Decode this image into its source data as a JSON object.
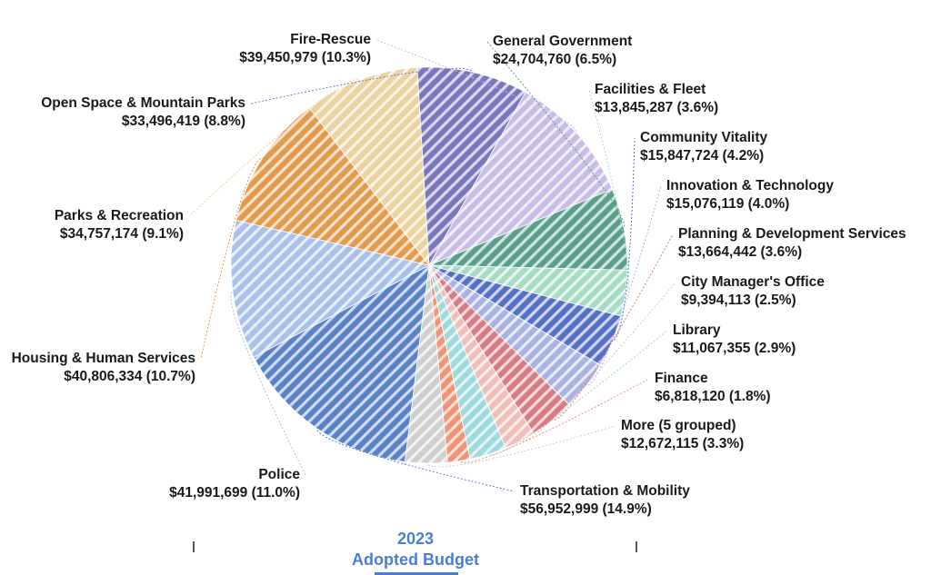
{
  "header": {
    "year": "2023",
    "subtitle": "Adopted Budget"
  },
  "chart_data": {
    "type": "pie",
    "title": "",
    "slices": [
      {
        "name": "Transportation & Mobility",
        "value": 56952999,
        "label": "$56,952,999 (14.9%)",
        "percent": 14.9,
        "color": "#5a82c8"
      },
      {
        "name": "Police",
        "value": 41991699,
        "label": "$41,991,699 (11.0%)",
        "percent": 11.0,
        "color": "#a9c1ea"
      },
      {
        "name": "Housing & Human Services",
        "value": 40806334,
        "label": "$40,806,334 (10.7%)",
        "percent": 10.7,
        "color": "#e39a4b"
      },
      {
        "name": "Parks & Recreation",
        "value": 34757174,
        "label": "$34,757,174 (9.1%)",
        "percent": 9.1,
        "color": "#ead3a0"
      },
      {
        "name": "Open Space & Mountain Parks",
        "value": 33496419,
        "label": "$33,496,419 (8.8%)",
        "percent": 8.8,
        "color": "#7b76bd"
      },
      {
        "name": "Fire-Rescue",
        "value": 39450979,
        "label": "$39,450,979 (10.3%)",
        "percent": 10.3,
        "color": "#c9bde8"
      },
      {
        "name": "General Government",
        "value": 24704760,
        "label": "$24,704,760 (6.5%)",
        "percent": 6.5,
        "color": "#5a9e8c"
      },
      {
        "name": "Facilities & Fleet",
        "value": 13845287,
        "label": "$13,845,287 (3.6%)",
        "percent": 3.6,
        "color": "#a7dcc4"
      },
      {
        "name": "Community Vitality",
        "value": 15847724,
        "label": "$15,847,724 (4.2%)",
        "percent": 4.2,
        "color": "#5570c4"
      },
      {
        "name": "Innovation & Technology",
        "value": 15076119,
        "label": "$15,076,119 (4.0%)",
        "percent": 4.0,
        "color": "#a9b3e2"
      },
      {
        "name": "Planning & Development Services",
        "value": 13664442,
        "label": "$13,664,442 (3.6%)",
        "percent": 3.6,
        "color": "#d77c84"
      },
      {
        "name": "City Manager's Office",
        "value": 9394113,
        "label": "$9,394,113 (2.5%)",
        "percent": 2.5,
        "color": "#f0bdb9"
      },
      {
        "name": "Library",
        "value": 11067355,
        "label": "$11,067,355 (2.9%)",
        "percent": 2.9,
        "color": "#9ed9dc"
      },
      {
        "name": "Finance",
        "value": 6818120,
        "label": "$6,818,120 (1.8%)",
        "percent": 1.8,
        "color": "#ef9474"
      },
      {
        "name": "More (5 grouped)",
        "value": 12672115,
        "label": "$12,672,115 (3.3%)",
        "percent": 3.3,
        "color": "#cfcfcf"
      }
    ]
  }
}
